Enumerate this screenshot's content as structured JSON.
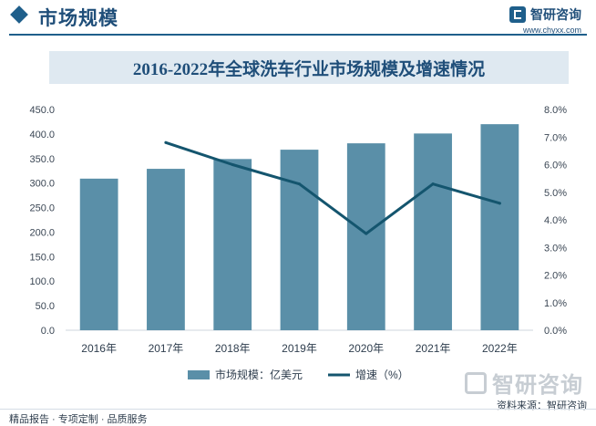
{
  "header": {
    "section_title": "市场规模",
    "logo_text": "智研咨询",
    "site_url": "www.chyxx.com"
  },
  "chart_data": {
    "type": "bar",
    "title": "2016-2022年全球洗车行业市场规模及增速情况",
    "categories": [
      "2016年",
      "2017年",
      "2018年",
      "2019年",
      "2020年",
      "2021年",
      "2022年"
    ],
    "series": [
      {
        "name": "市场规模：亿美元",
        "type": "bar",
        "axis": "left",
        "color": "#5a8fa8",
        "values": [
          309,
          329,
          349,
          368,
          381,
          401,
          420
        ]
      },
      {
        "name": "增速（%）",
        "type": "line",
        "axis": "right",
        "color": "#14556e",
        "values": [
          null,
          6.8,
          6.0,
          5.3,
          3.5,
          5.3,
          4.6
        ]
      }
    ],
    "y_left": {
      "min": 0,
      "max": 450,
      "step": 50,
      "tick_labels": [
        "0.0",
        "50.0",
        "100.0",
        "150.0",
        "200.0",
        "250.0",
        "300.0",
        "350.0",
        "400.0",
        "450.0"
      ]
    },
    "y_right": {
      "min": 0,
      "max": 8,
      "step": 1,
      "tick_labels": [
        "0.0%",
        "1.0%",
        "2.0%",
        "3.0%",
        "4.0%",
        "5.0%",
        "6.0%",
        "7.0%",
        "8.0%"
      ]
    },
    "grid": false,
    "legend_position": "bottom-center"
  },
  "footer": {
    "services": "精品报告 · 专项定制 · 品质服务",
    "source": "资料来源：智研咨询",
    "watermark_text": "智研咨询"
  }
}
